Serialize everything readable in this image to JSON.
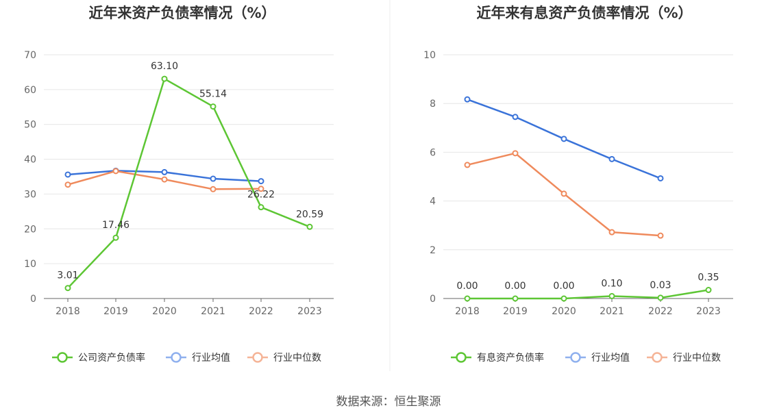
{
  "footer": {
    "source": "数据来源：恒生聚源"
  },
  "colors": {
    "company": "#5dc634",
    "avg": "#3a73d9",
    "median": "#ef8a5c",
    "grid": "#e6e6e6",
    "axis": "#666666"
  },
  "chart_data": [
    {
      "type": "line",
      "title": "近年来资产负债率情况（%）",
      "categories": [
        "2018",
        "2019",
        "2020",
        "2021",
        "2022",
        "2023"
      ],
      "ylim": [
        0,
        70
      ],
      "yticks": [
        "0",
        "10",
        "20",
        "30",
        "40",
        "50",
        "60",
        "70"
      ],
      "grid": true,
      "legend_position": "bottom",
      "series": [
        {
          "name": "公司资产负债率",
          "values": [
            3.01,
            17.46,
            63.1,
            55.14,
            26.22,
            20.59
          ],
          "labels": [
            "3.01",
            "17.46",
            "63.10",
            "55.14",
            "26.22",
            "20.59"
          ]
        },
        {
          "name": "行业均值",
          "values": [
            35.6,
            36.7,
            36.3,
            34.4,
            33.7,
            null
          ]
        },
        {
          "name": "行业中位数",
          "values": [
            32.7,
            36.6,
            34.2,
            31.4,
            31.5,
            null
          ]
        }
      ]
    },
    {
      "type": "line",
      "title": "近年来有息资产负债率情况（%）",
      "categories": [
        "2018",
        "2019",
        "2020",
        "2021",
        "2022",
        "2023"
      ],
      "ylim": [
        0,
        10
      ],
      "yticks": [
        "0",
        "2",
        "4",
        "6",
        "8",
        "10"
      ],
      "grid": true,
      "legend_position": "bottom",
      "series": [
        {
          "name": "有息资产负债率",
          "values": [
            0.0,
            0.0,
            0.0,
            0.1,
            0.03,
            0.35
          ],
          "labels": [
            "0.00",
            "0.00",
            "0.00",
            "0.10",
            "0.03",
            "0.35"
          ]
        },
        {
          "name": "行业均值",
          "values": [
            8.17,
            7.45,
            6.55,
            5.72,
            4.93,
            null
          ]
        },
        {
          "name": "行业中位数",
          "values": [
            5.48,
            5.96,
            4.3,
            2.72,
            2.58,
            null
          ]
        }
      ]
    }
  ]
}
